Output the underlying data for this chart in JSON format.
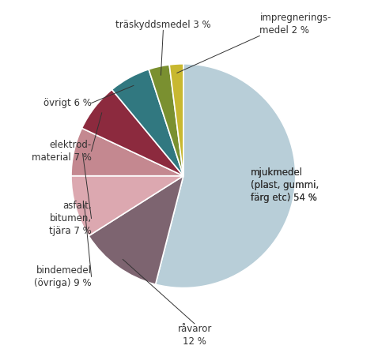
{
  "slices": [
    {
      "label": "mjukmedel\n(plast, gummi,\nfärg etc) 54 %",
      "value": 54,
      "color": "#b8ced8"
    },
    {
      "label": "råvaror\n12 %",
      "value": 12,
      "color": "#7d6470"
    },
    {
      "label": "bindemedel\n(övriga) 9 %",
      "value": 9,
      "color": "#dca8b0"
    },
    {
      "label": "asfalt,\nbitumen,\ntjära 7 %",
      "value": 7,
      "color": "#c48890"
    },
    {
      "label": "elektrod-\nmaterial 7 %",
      "value": 7,
      "color": "#8c2a3e"
    },
    {
      "label": "övrigt 6 %",
      "value": 6,
      "color": "#317880"
    },
    {
      "label": "träskyddsmedel 3 %",
      "value": 3,
      "color": "#7a9030"
    },
    {
      "label": "impregnerings-\nmedel 2 %",
      "value": 2,
      "color": "#c8b830"
    }
  ],
  "background_color": "#ffffff",
  "text_color": "#333333",
  "font_size": 8.5,
  "wedge_linewidth": 1.2,
  "wedge_linecolor": "#ffffff"
}
